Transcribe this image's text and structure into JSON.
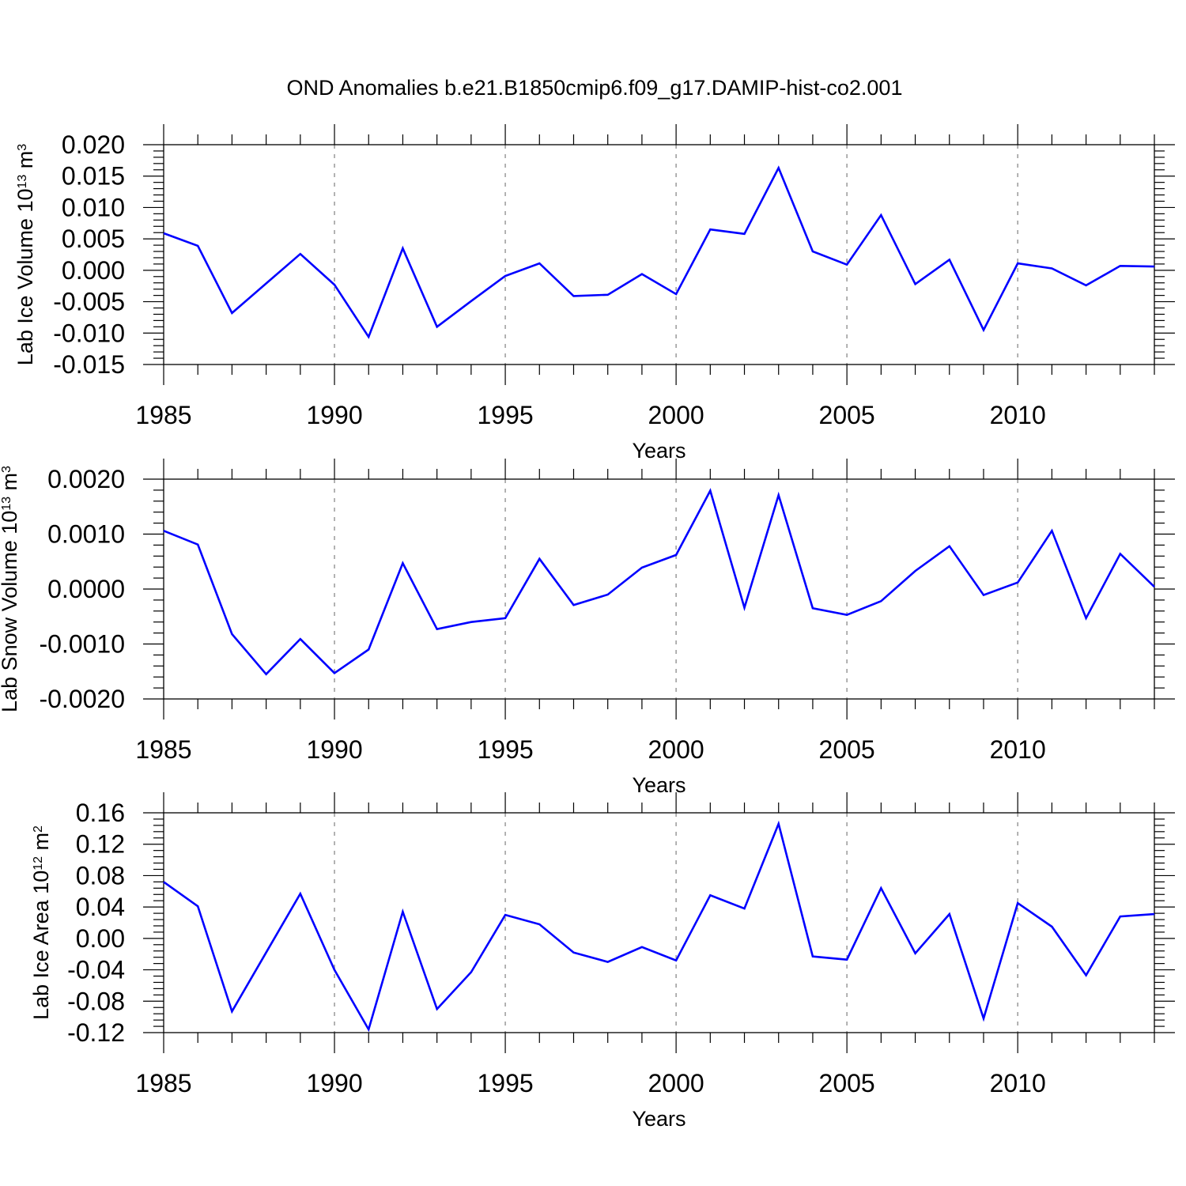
{
  "title": "OND Anomalies b.e21.B1850cmip6.f09_g17.DAMIP-hist-co2.001",
  "line_color": "#0000ff",
  "chart_data": [
    {
      "type": "line",
      "ylabel": "Lab Ice Volume 10",
      "ylabel_exp": "13",
      "ylabel_unit": "m",
      "ylabel_unit_exp": "3",
      "xlabel": "Years",
      "xlim": [
        1985,
        2014
      ],
      "ylim": [
        -0.015,
        0.02
      ],
      "x_ticks": [
        "1985",
        "1990",
        "1995",
        "2000",
        "2005",
        "2010"
      ],
      "y_ticks": [
        "0.020",
        "0.015",
        "0.010",
        "0.005",
        "0.000",
        "-0.005",
        "-0.010",
        "-0.015"
      ],
      "x": [
        1985,
        1986,
        1987,
        1988,
        1989,
        1990,
        1991,
        1992,
        1993,
        1994,
        1995,
        1996,
        1997,
        1998,
        1999,
        2000,
        2001,
        2002,
        2003,
        2004,
        2005,
        2006,
        2007,
        2008,
        2009,
        2010,
        2011,
        2012,
        2013,
        2014
      ],
      "y": [
        0.0059,
        0.0039,
        -0.0068,
        -0.0021,
        0.0026,
        -0.0023,
        -0.0106,
        0.0035,
        -0.009,
        -0.0049,
        -0.0009,
        0.0011,
        -0.0041,
        -0.0039,
        -0.0006,
        -0.0038,
        0.0065,
        0.0058,
        0.0163,
        0.003,
        0.0009,
        0.0088,
        -0.0022,
        0.0017,
        -0.0095,
        0.0011,
        0.0003,
        -0.0024,
        0.0007,
        0.0006
      ]
    },
    {
      "type": "line",
      "ylabel": "Lab Snow Volume 10",
      "ylabel_exp": "13",
      "ylabel_unit": "m",
      "ylabel_unit_exp": "3",
      "xlabel": "Years",
      "xlim": [
        1985,
        2014
      ],
      "ylim": [
        -0.002,
        0.002
      ],
      "x_ticks": [
        "1985",
        "1990",
        "1995",
        "2000",
        "2005",
        "2010"
      ],
      "y_ticks": [
        "0.0020",
        "0.0010",
        "0.0000",
        "-0.0010",
        "-0.0020"
      ],
      "x": [
        1985,
        1986,
        1987,
        1988,
        1989,
        1990,
        1991,
        1992,
        1993,
        1994,
        1995,
        1996,
        1997,
        1998,
        1999,
        2000,
        2001,
        2002,
        2003,
        2004,
        2005,
        2006,
        2007,
        2008,
        2009,
        2010,
        2011,
        2012,
        2013,
        2014
      ],
      "y": [
        0.00106,
        0.00081,
        -0.00082,
        -0.00155,
        -0.00091,
        -0.00153,
        -0.0011,
        0.00047,
        -0.00073,
        -0.0006,
        -0.00053,
        0.00055,
        -0.00029,
        -0.0001,
        0.00039,
        0.00062,
        0.00179,
        -0.00034,
        0.00171,
        -0.00035,
        -0.00047,
        -0.00022,
        0.00033,
        0.00078,
        -0.00011,
        0.00012,
        0.00106,
        -0.00053,
        0.00064,
        4e-05
      ]
    },
    {
      "type": "line",
      "ylabel": "Lab Ice Area 10",
      "ylabel_exp": "12",
      "ylabel_unit": "m",
      "ylabel_unit_exp": "2",
      "xlabel": "Years",
      "xlim": [
        1985,
        2014
      ],
      "ylim": [
        -0.12,
        0.16
      ],
      "x_ticks": [
        "1985",
        "1990",
        "1995",
        "2000",
        "2005",
        "2010"
      ],
      "y_ticks": [
        "0.16",
        "0.12",
        "0.08",
        "0.04",
        "0.00",
        "-0.04",
        "-0.08",
        "-0.12"
      ],
      "x": [
        1985,
        1986,
        1987,
        1988,
        1989,
        1990,
        1991,
        1992,
        1993,
        1994,
        1995,
        1996,
        1997,
        1998,
        1999,
        2000,
        2001,
        2002,
        2003,
        2004,
        2005,
        2006,
        2007,
        2008,
        2009,
        2010,
        2011,
        2012,
        2013,
        2014
      ],
      "y": [
        0.072,
        0.041,
        -0.093,
        -0.018,
        0.057,
        -0.04,
        -0.116,
        0.034,
        -0.09,
        -0.043,
        0.03,
        0.018,
        -0.018,
        -0.03,
        -0.011,
        -0.028,
        0.055,
        0.038,
        0.146,
        -0.023,
        -0.027,
        0.064,
        -0.019,
        0.031,
        -0.102,
        0.045,
        0.015,
        -0.047,
        0.028,
        0.031
      ]
    }
  ]
}
